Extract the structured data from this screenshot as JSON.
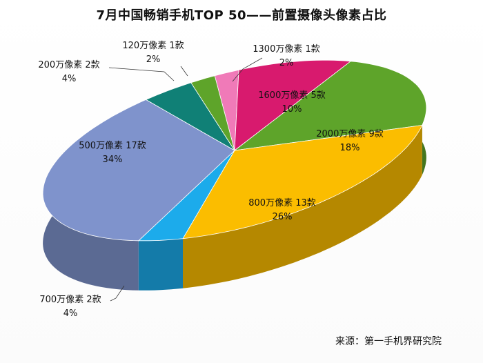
{
  "chart_data": {
    "type": "pie",
    "title": "7月中国畅销手机TOP 50——前置摄像头像素占比",
    "source": "来源：第一手机界研究院",
    "slices": [
      {
        "label": "1300万像素 1款",
        "pct": "2%",
        "value": 2,
        "color": "#f07ab8"
      },
      {
        "label": "1600万像素 5款",
        "pct": "10%",
        "value": 10,
        "color": "#d81a6e"
      },
      {
        "label": "2000万像素 9款",
        "pct": "18%",
        "value": 18,
        "color": "#5ea42a"
      },
      {
        "label": "800万像素 13款",
        "pct": "26%",
        "value": 26,
        "color": "#fbbd00"
      },
      {
        "label": "700万像素 2款",
        "pct": "4%",
        "value": 4,
        "color": "#1cabeb"
      },
      {
        "label": "500万像素 17款",
        "pct": "34%",
        "value": 34,
        "color": "#7f93cc"
      },
      {
        "label": "200万像素 2款",
        "pct": "4%",
        "value": 4,
        "color": "#108076"
      },
      {
        "label": "120万像素 1款",
        "pct": "2%",
        "value": 2,
        "color": "#5ea42a"
      }
    ]
  }
}
